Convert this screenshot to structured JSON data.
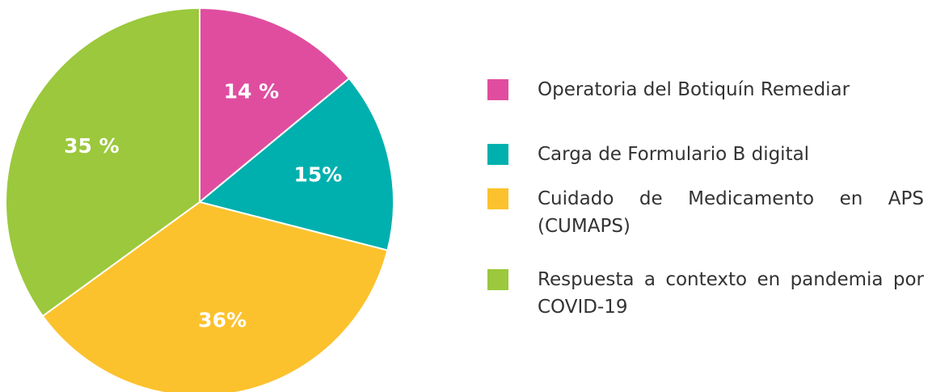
{
  "chart_data": {
    "type": "pie",
    "categories": [
      "Operatoria del Botiquín Remediar",
      "Carga de Formulario B digital",
      "Cuidado de Medicamento en APS (CUMAPS)",
      "Respuesta a contexto en pandemia por COVID-19"
    ],
    "values": [
      14,
      15,
      36,
      35
    ],
    "value_labels": [
      "14 %",
      "15%",
      "36%",
      "35 %"
    ],
    "colors": [
      "#e04d9f",
      "#00b0ae",
      "#fcc22d",
      "#9bc83c"
    ],
    "legend": "right"
  }
}
